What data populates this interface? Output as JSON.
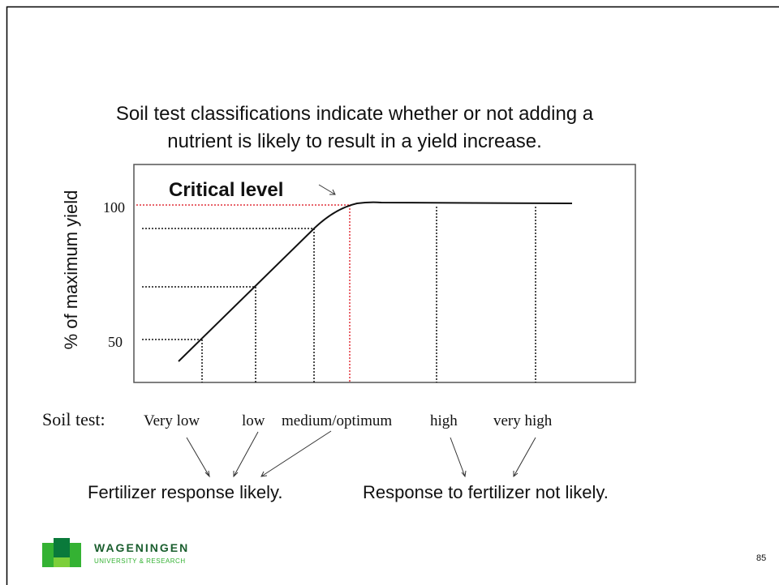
{
  "title": [
    "Soil test classifications indicate whether or not adding a",
    "nutrient is likely to result in a yield increase."
  ],
  "graph": {
    "y_label": "% of maximum yield",
    "y_ticks": [
      "100",
      "50"
    ],
    "annotation": "Critical level"
  },
  "soil_test": {
    "label": "Soil test:",
    "classes": [
      "Very low",
      "low",
      "medium/optimum",
      "high",
      "very high"
    ]
  },
  "responses": [
    "Fertilizer response likely.",
    "Response to fertilizer not likely."
  ],
  "logo": {
    "name": "WAGENINGEN",
    "subtitle": "UNIVERSITY & RESEARCH"
  },
  "page_number": "85"
}
